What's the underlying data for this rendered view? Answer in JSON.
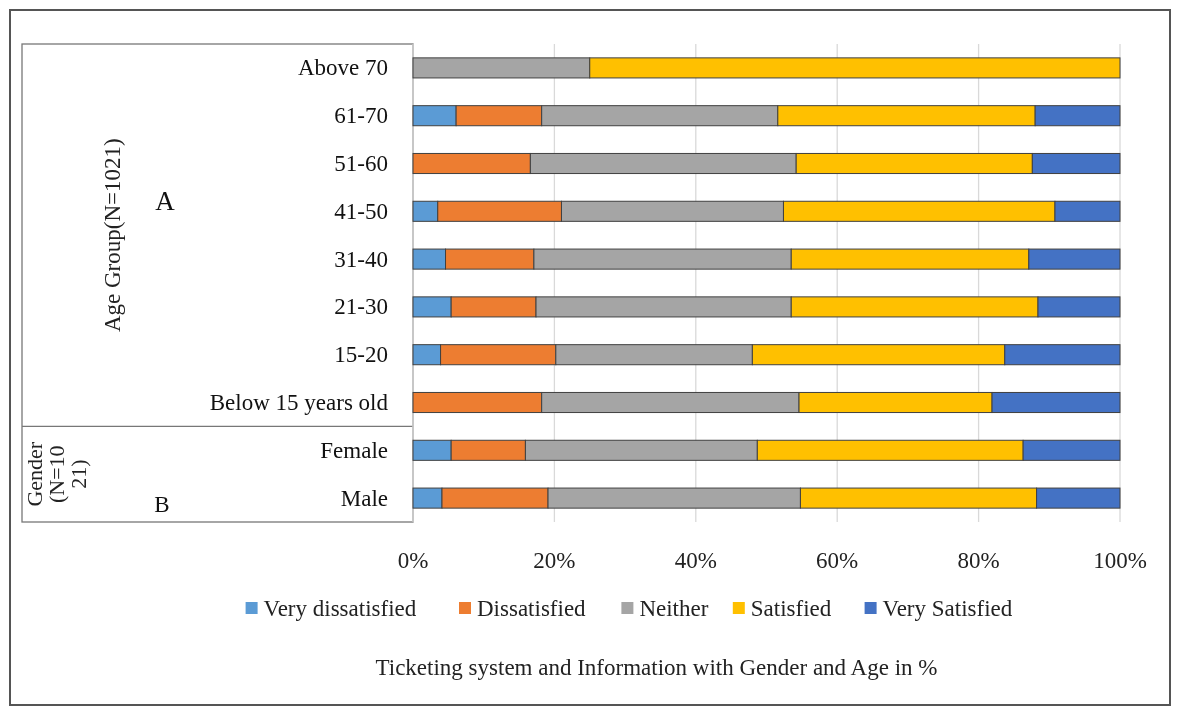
{
  "chart_data": {
    "type": "bar",
    "orientation": "horizontal",
    "stacked": true,
    "categories": [
      "Above 70",
      "61-70",
      "51-60",
      "41-50",
      "31-40",
      "21-30",
      "15-20",
      "Below 15 years old",
      "Female",
      "Male"
    ],
    "series": [
      {
        "name": "Very dissatisfied",
        "color": "#5b9bd5",
        "values": [
          0,
          6.1,
          0,
          3.5,
          4.6,
          5.4,
          3.9,
          0,
          5.4,
          4.1
        ]
      },
      {
        "name": "Dissatisfied",
        "color": "#ed7d31",
        "values": [
          0,
          12.1,
          16.6,
          17.5,
          12.5,
          12.0,
          16.3,
          18.2,
          10.5,
          15.0
        ]
      },
      {
        "name": "Neither",
        "color": "#a5a5a5",
        "values": [
          25,
          33.4,
          37.6,
          31.4,
          36.4,
          36.1,
          27.8,
          36.4,
          32.8,
          35.7
        ]
      },
      {
        "name": "Satisfied",
        "color": "#ffc000",
        "values": [
          75,
          36.4,
          33.4,
          38.4,
          33.6,
          34.9,
          35.7,
          27.3,
          37.6,
          33.4
        ]
      },
      {
        "name": "Very Satisfied",
        "color": "#4472c4",
        "values": [
          0,
          12.0,
          12.4,
          9.2,
          12.9,
          11.6,
          16.3,
          18.1,
          13.7,
          11.8
        ]
      }
    ],
    "xlim": [
      0,
      100
    ],
    "xticks": [
      {
        "value": 0,
        "label": "0%"
      },
      {
        "value": 20,
        "label": "20%"
      },
      {
        "value": 40,
        "label": "40%"
      },
      {
        "value": 60,
        "label": "60%"
      },
      {
        "value": 80,
        "label": "80%"
      },
      {
        "value": 100,
        "label": "100%"
      }
    ],
    "xlabel": "Ticketing system and Information with Gender and Age in %",
    "annotations": [
      "Age Group(N=1021)",
      "A",
      "Gender (N=1021)",
      "B"
    ],
    "grid": "x",
    "legend": "bottom"
  }
}
